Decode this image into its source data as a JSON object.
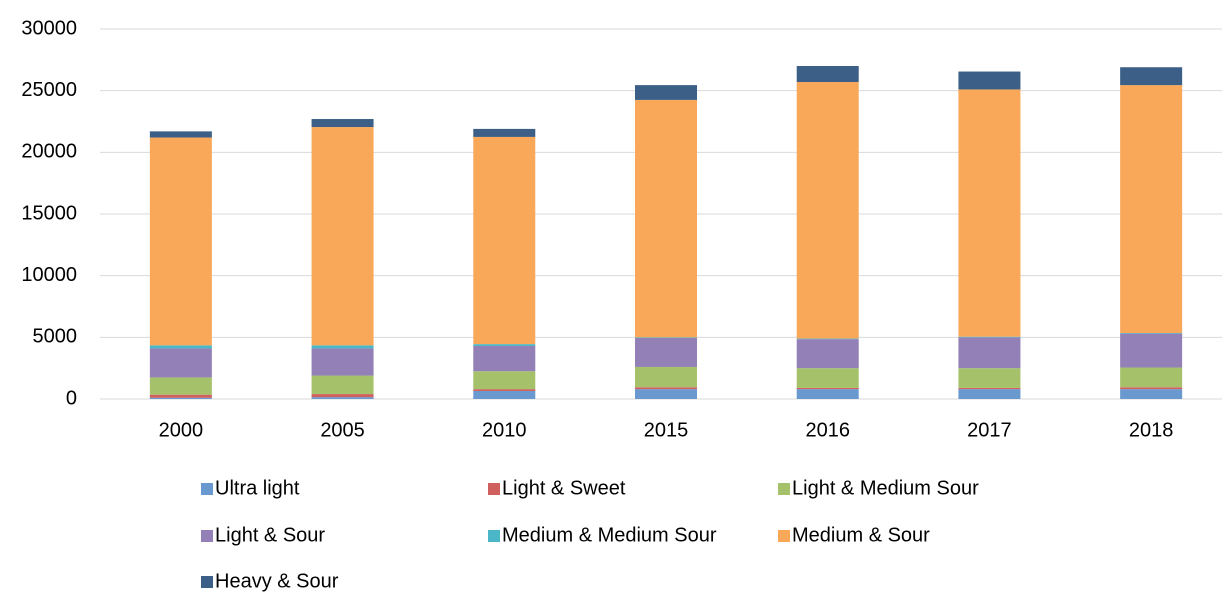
{
  "chart_data": {
    "type": "stacked_bar",
    "categories": [
      "2000",
      "2005",
      "2010",
      "2015",
      "2016",
      "2017",
      "2018"
    ],
    "series": [
      {
        "name": "Ultra light",
        "color": "#6a99d0",
        "values": [
          100,
          150,
          650,
          800,
          800,
          800,
          800
        ]
      },
      {
        "name": "Light & Sweet",
        "color": "#d0605e",
        "values": [
          250,
          250,
          150,
          150,
          100,
          100,
          150
        ]
      },
      {
        "name": "Light & Medium Sour",
        "color": "#a5c26b",
        "values": [
          1400,
          1500,
          1450,
          1650,
          1600,
          1600,
          1600
        ]
      },
      {
        "name": "Light & Sour",
        "color": "#9280b6",
        "values": [
          2350,
          2200,
          2050,
          2350,
          2350,
          2500,
          2750
        ]
      },
      {
        "name": "Medium & Medium Sour",
        "color": "#4bb6c8",
        "values": [
          250,
          250,
          150,
          50,
          50,
          50,
          50
        ]
      },
      {
        "name": "Medium & Sour",
        "color": "#f9a85a",
        "values": [
          16850,
          17700,
          16800,
          19250,
          20800,
          20050,
          20100
        ]
      },
      {
        "name": "Heavy & Sour",
        "color": "#3b5f86",
        "values": [
          500,
          650,
          650,
          1200,
          1300,
          1450,
          1450
        ]
      }
    ],
    "ylim": [
      0,
      30000
    ],
    "yticks": [
      0,
      5000,
      10000,
      15000,
      20000,
      25000,
      30000
    ],
    "grid": true,
    "legend": "bottom"
  }
}
